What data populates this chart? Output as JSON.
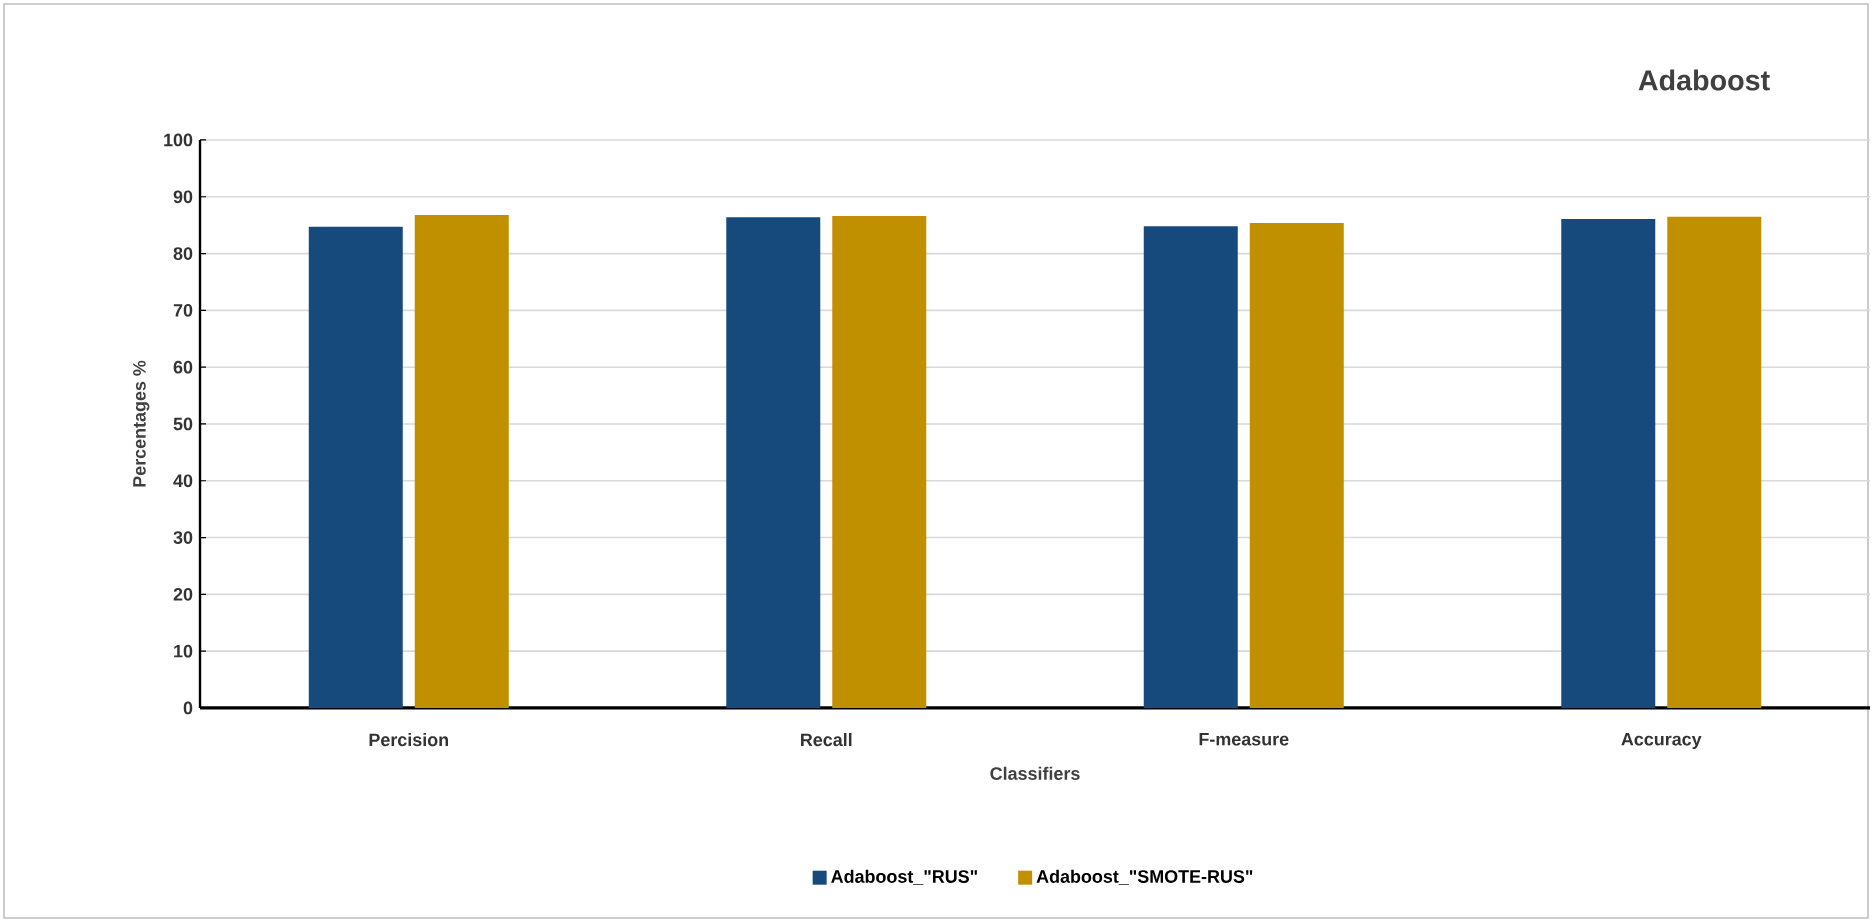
{
  "chart_data": {
    "type": "bar",
    "title": "Adaboost",
    "xlabel": "Classifiers",
    "ylabel": "Percentages %",
    "categories": [
      "Percision",
      "Recall",
      "F-measure",
      "Accuracy"
    ],
    "series": [
      {
        "name": "Adaboost_\"RUS\"",
        "color": "#174a7c",
        "values": [
          84.7,
          86.4,
          84.8,
          86.1
        ]
      },
      {
        "name": "Adaboost_\"SMOTE-RUS\"",
        "color": "#c09000",
        "values": [
          86.8,
          86.6,
          85.4,
          86.5
        ]
      }
    ],
    "ylim": [
      0,
      100
    ],
    "yticks": [
      0,
      10,
      20,
      30,
      40,
      50,
      60,
      70,
      80,
      90,
      100
    ],
    "grid": "y",
    "legend": "bottom"
  }
}
